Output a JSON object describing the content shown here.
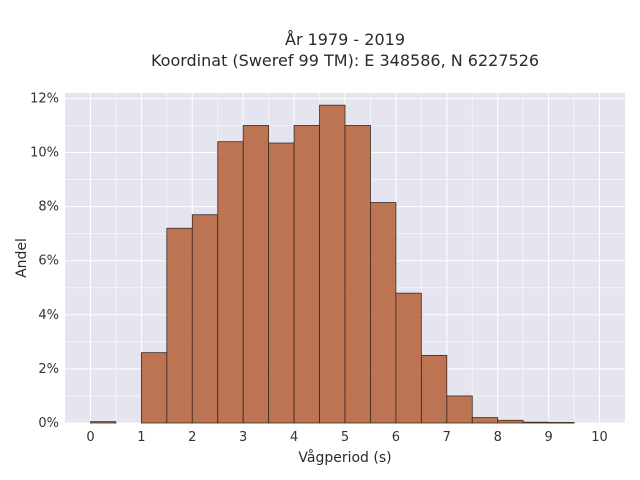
{
  "chart_data": {
    "type": "bar",
    "title": "År 1979 - 2019",
    "subtitle": "Koordinat (Sweref 99 TM): E 348586, N 6227526",
    "xlabel": "Vågperiod (s)",
    "ylabel": "Andel",
    "xlim": [
      -0.5,
      10.5
    ],
    "ylim": [
      0,
      0.122
    ],
    "x_ticks": [
      "0",
      "1",
      "2",
      "3",
      "4",
      "5",
      "6",
      "7",
      "8",
      "9",
      "10"
    ],
    "y_ticks": [
      "0%",
      "2%",
      "4%",
      "6%",
      "8%",
      "10%",
      "12%"
    ],
    "bin_width": 0.5,
    "bins": [
      {
        "x0": 0.0,
        "value": 0.0005
      },
      {
        "x0": 0.5,
        "value": 0.0
      },
      {
        "x0": 1.0,
        "value": 0.026
      },
      {
        "x0": 1.5,
        "value": 0.072
      },
      {
        "x0": 2.0,
        "value": 0.077
      },
      {
        "x0": 2.5,
        "value": 0.104
      },
      {
        "x0": 3.0,
        "value": 0.11
      },
      {
        "x0": 3.5,
        "value": 0.1035
      },
      {
        "x0": 4.0,
        "value": 0.11
      },
      {
        "x0": 4.5,
        "value": 0.1175
      },
      {
        "x0": 5.0,
        "value": 0.11
      },
      {
        "x0": 5.5,
        "value": 0.0815
      },
      {
        "x0": 6.0,
        "value": 0.048
      },
      {
        "x0": 6.5,
        "value": 0.025
      },
      {
        "x0": 7.0,
        "value": 0.01
      },
      {
        "x0": 7.5,
        "value": 0.002
      },
      {
        "x0": 8.0,
        "value": 0.001
      },
      {
        "x0": 8.5,
        "value": 0.0003
      },
      {
        "x0": 9.0,
        "value": 0.0002
      }
    ],
    "grid": true,
    "bar_color": "#b86a45",
    "plot_background": "#e5e5ef"
  }
}
